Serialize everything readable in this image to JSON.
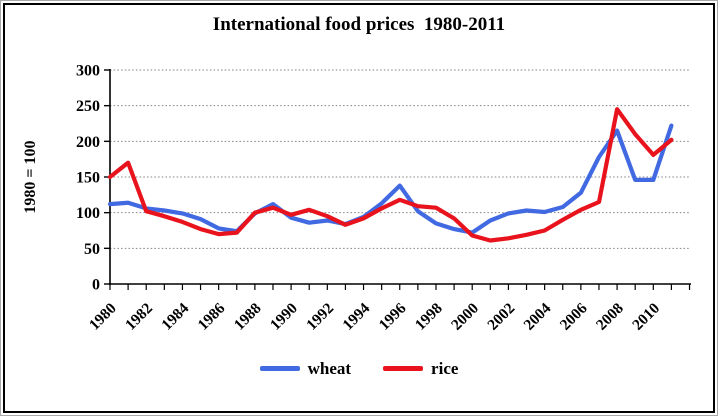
{
  "chart_data": {
    "type": "line",
    "title": "International food prices  1980-2011",
    "ylabel": "1980 = 100",
    "ylim": [
      0,
      300
    ],
    "ytick_step": 50,
    "grid": "horizontal-dotted",
    "legend_position": "bottom",
    "x": [
      1980,
      1981,
      1982,
      1983,
      1984,
      1985,
      1986,
      1987,
      1988,
      1989,
      1990,
      1991,
      1992,
      1993,
      1994,
      1995,
      1996,
      1997,
      1998,
      1999,
      2000,
      2001,
      2002,
      2003,
      2004,
      2005,
      2006,
      2007,
      2008,
      2009,
      2010,
      2011
    ],
    "xtick_labels": [
      "1980",
      "1982",
      "1984",
      "1986",
      "1988",
      "1990",
      "1992",
      "1994",
      "1996",
      "1998",
      "2000",
      "2002",
      "2004",
      "2006",
      "2008",
      "2010"
    ],
    "series": [
      {
        "name": "wheat",
        "color": "#4169e1",
        "values": [
          112,
          114,
          106,
          103,
          99,
          91,
          78,
          74,
          99,
          112,
          93,
          86,
          89,
          84,
          94,
          113,
          138,
          102,
          85,
          77,
          72,
          89,
          99,
          103,
          101,
          108,
          128,
          178,
          215,
          146,
          146,
          222
        ]
      },
      {
        "name": "rice",
        "color": "#e8131c",
        "values": [
          150,
          170,
          102,
          95,
          87,
          77,
          70,
          72,
          100,
          107,
          97,
          104,
          95,
          83,
          92,
          106,
          118,
          109,
          107,
          92,
          68,
          61,
          64,
          69,
          75,
          90,
          104,
          115,
          245,
          210,
          181,
          202
        ]
      }
    ],
    "colors": {
      "axis": "#000000",
      "gridline": "#828282",
      "text": "#000000"
    }
  }
}
